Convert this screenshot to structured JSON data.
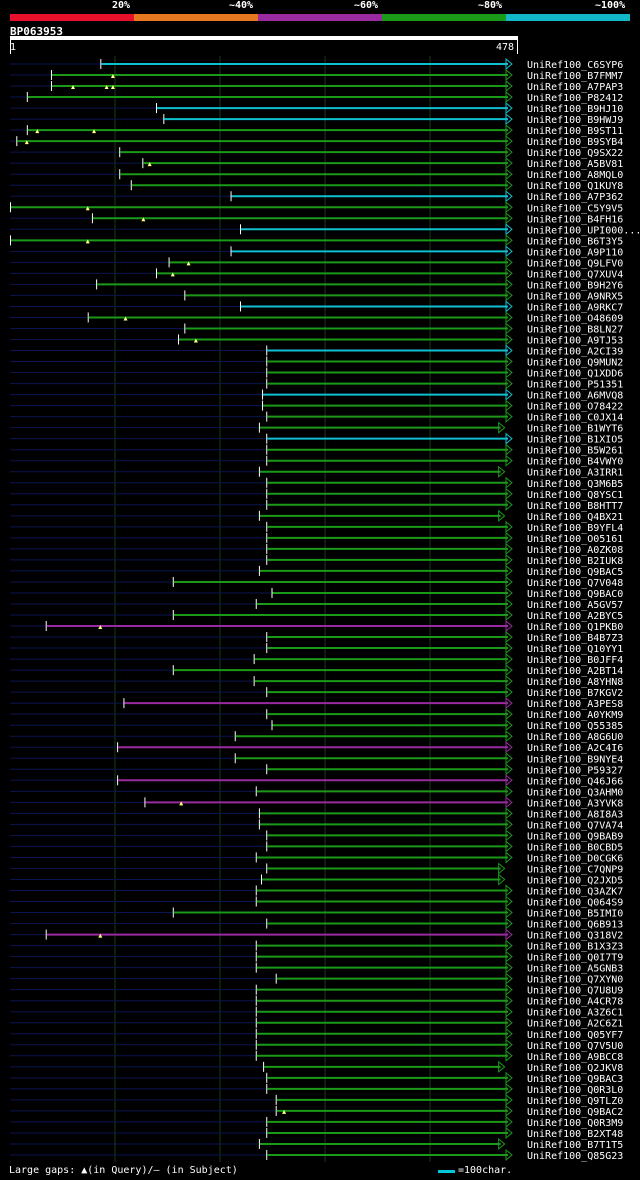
{
  "legend": {
    "percent_labels": [
      "20%",
      "~40%",
      "~60%",
      "~80%",
      "~100%"
    ],
    "colors": [
      "#e8102a",
      "#e87820",
      "#9a2aa0",
      "#1a9a18",
      "#10b8c8"
    ]
  },
  "query": {
    "id": "BP063953",
    "start": "1",
    "end": "478"
  },
  "footer": {
    "large_gaps": "Large gaps: ▲(in Query)/— (in Subject)",
    "scale": "=100char."
  },
  "chart_data": {
    "type": "alignment",
    "query_length": 478,
    "gridlines": [
      100,
      200,
      300,
      400
    ],
    "hits": [
      {
        "name": "UniRef100_C6SYP6",
        "start": 86,
        "end": 478,
        "color": "cyan"
      },
      {
        "name": "UniRef100_B7FMM7",
        "start": 39,
        "end": 478,
        "color": "green",
        "gaps": [
          98
        ]
      },
      {
        "name": "UniRef100_A7PAP3",
        "start": 39,
        "end": 478,
        "color": "green",
        "gaps": [
          60,
          92,
          98
        ]
      },
      {
        "name": "UniRef100_P82412",
        "start": 16,
        "end": 478,
        "color": "green"
      },
      {
        "name": "UniRef100_B9HJ10",
        "start": 139,
        "end": 478,
        "color": "cyan"
      },
      {
        "name": "UniRef100_B9HWJ9",
        "start": 146,
        "end": 478,
        "color": "cyan"
      },
      {
        "name": "UniRef100_B9ST11",
        "start": 16,
        "end": 478,
        "color": "green",
        "gaps": [
          26,
          80
        ]
      },
      {
        "name": "UniRef100_B9SYB4",
        "start": 6,
        "end": 478,
        "color": "green",
        "gaps": [
          16
        ]
      },
      {
        "name": "UniRef100_Q9SX22",
        "start": 104,
        "end": 478,
        "color": "green"
      },
      {
        "name": "UniRef100_A5BV81",
        "start": 126,
        "end": 478,
        "color": "green",
        "gaps": [
          133
        ]
      },
      {
        "name": "UniRef100_A8MQL0",
        "start": 104,
        "end": 478,
        "color": "green"
      },
      {
        "name": "UniRef100_Q1KUY8",
        "start": 115,
        "end": 478,
        "color": "green"
      },
      {
        "name": "UniRef100_A7P362",
        "start": 210,
        "end": 478,
        "color": "cyan"
      },
      {
        "name": "UniRef100_C5Y9V5",
        "start": 0,
        "end": 478,
        "color": "green",
        "gaps": [
          74
        ]
      },
      {
        "name": "UniRef100_B4FH16",
        "start": 78,
        "end": 478,
        "color": "green",
        "gaps": [
          127
        ]
      },
      {
        "name": "UniRef100_UPI000...",
        "start": 219,
        "end": 478,
        "color": "cyan"
      },
      {
        "name": "UniRef100_B6T3Y5",
        "start": 0,
        "end": 478,
        "color": "green",
        "gaps": [
          74
        ]
      },
      {
        "name": "UniRef100_A9P110",
        "start": 210,
        "end": 478,
        "color": "cyan"
      },
      {
        "name": "UniRef100_Q9LFV0",
        "start": 151,
        "end": 478,
        "color": "green",
        "gaps": [
          170
        ]
      },
      {
        "name": "UniRef100_Q7XUV4",
        "start": 139,
        "end": 478,
        "color": "green",
        "gaps": [
          155
        ]
      },
      {
        "name": "UniRef100_B9H2Y6",
        "start": 82,
        "end": 478,
        "color": "green"
      },
      {
        "name": "UniRef100_A9NRX5",
        "start": 166,
        "end": 478,
        "color": "green"
      },
      {
        "name": "UniRef100_A9RKC7",
        "start": 219,
        "end": 478,
        "color": "cyan"
      },
      {
        "name": "UniRef100_O48609",
        "start": 74,
        "end": 478,
        "color": "green",
        "gaps": [
          110
        ]
      },
      {
        "name": "UniRef100_B8LN27",
        "start": 166,
        "end": 478,
        "color": "green"
      },
      {
        "name": "UniRef100_A9TJ53",
        "start": 160,
        "end": 478,
        "color": "green",
        "gaps": [
          177
        ]
      },
      {
        "name": "UniRef100_A2CI39",
        "start": 244,
        "end": 478,
        "color": "cyan"
      },
      {
        "name": "UniRef100_Q9MUN2",
        "start": 244,
        "end": 478,
        "color": "green"
      },
      {
        "name": "UniRef100_Q1XDD6",
        "start": 244,
        "end": 478,
        "color": "green"
      },
      {
        "name": "UniRef100_P51351",
        "start": 244,
        "end": 478,
        "color": "green"
      },
      {
        "name": "UniRef100_A6MVQ8",
        "start": 240,
        "end": 478,
        "color": "cyan"
      },
      {
        "name": "UniRef100_O78422",
        "start": 240,
        "end": 478,
        "color": "green"
      },
      {
        "name": "UniRef100_C0JX14",
        "start": 244,
        "end": 478,
        "color": "green"
      },
      {
        "name": "UniRef100_B1WYT6",
        "start": 237,
        "end": 471,
        "color": "green"
      },
      {
        "name": "UniRef100_B1XIO5",
        "start": 244,
        "end": 478,
        "color": "cyan"
      },
      {
        "name": "UniRef100_B5W261",
        "start": 244,
        "end": 478,
        "color": "green"
      },
      {
        "name": "UniRef100_B4VWY0",
        "start": 244,
        "end": 478,
        "color": "green"
      },
      {
        "name": "UniRef100_A3IRR1",
        "start": 237,
        "end": 471,
        "color": "green"
      },
      {
        "name": "UniRef100_Q3M6B5",
        "start": 244,
        "end": 478,
        "color": "green"
      },
      {
        "name": "UniRef100_Q8YSC1",
        "start": 244,
        "end": 478,
        "color": "green"
      },
      {
        "name": "UniRef100_B8HTT7",
        "start": 244,
        "end": 478,
        "color": "green"
      },
      {
        "name": "UniRef100_Q4BX21",
        "start": 237,
        "end": 471,
        "color": "green"
      },
      {
        "name": "UniRef100_B9YFL4",
        "start": 244,
        "end": 478,
        "color": "green"
      },
      {
        "name": "UniRef100_O05161",
        "start": 244,
        "end": 478,
        "color": "green"
      },
      {
        "name": "UniRef100_A0ZK08",
        "start": 244,
        "end": 478,
        "color": "green"
      },
      {
        "name": "UniRef100_B2IUK8",
        "start": 244,
        "end": 478,
        "color": "green"
      },
      {
        "name": "UniRef100_Q9BAC5",
        "start": 237,
        "end": 478,
        "color": "green"
      },
      {
        "name": "UniRef100_Q7V048",
        "start": 155,
        "end": 478,
        "color": "green"
      },
      {
        "name": "UniRef100_Q9BAC0",
        "start": 249,
        "end": 478,
        "color": "green"
      },
      {
        "name": "UniRef100_A5GV57",
        "start": 234,
        "end": 478,
        "color": "green"
      },
      {
        "name": "UniRef100_A2BYC5",
        "start": 155,
        "end": 478,
        "color": "green"
      },
      {
        "name": "UniRef100_Q1PKB0",
        "start": 34,
        "end": 478,
        "color": "purple",
        "gaps": [
          86
        ]
      },
      {
        "name": "UniRef100_B4B7Z3",
        "start": 244,
        "end": 478,
        "color": "green"
      },
      {
        "name": "UniRef100_Q10YY1",
        "start": 244,
        "end": 478,
        "color": "green"
      },
      {
        "name": "UniRef100_B0JFF4",
        "start": 232,
        "end": 478,
        "color": "green"
      },
      {
        "name": "UniRef100_A2BT14",
        "start": 155,
        "end": 478,
        "color": "green"
      },
      {
        "name": "UniRef100_A8YHN8",
        "start": 232,
        "end": 478,
        "color": "green"
      },
      {
        "name": "UniRef100_B7KGV2",
        "start": 244,
        "end": 478,
        "color": "green"
      },
      {
        "name": "UniRef100_A3PES8",
        "start": 108,
        "end": 478,
        "color": "purple"
      },
      {
        "name": "UniRef100_A0YKM9",
        "start": 244,
        "end": 478,
        "color": "green"
      },
      {
        "name": "UniRef100_Q55385",
        "start": 249,
        "end": 478,
        "color": "green"
      },
      {
        "name": "UniRef100_A8G6U0",
        "start": 214,
        "end": 478,
        "color": "green"
      },
      {
        "name": "UniRef100_A2C4I6",
        "start": 102,
        "end": 478,
        "color": "purple"
      },
      {
        "name": "UniRef100_B9NYE4",
        "start": 214,
        "end": 478,
        "color": "green"
      },
      {
        "name": "UniRef100_P59327",
        "start": 244,
        "end": 478,
        "color": "green"
      },
      {
        "name": "UniRef100_Q46J66",
        "start": 102,
        "end": 478,
        "color": "purple"
      },
      {
        "name": "UniRef100_Q3AHM0",
        "start": 234,
        "end": 478,
        "color": "green"
      },
      {
        "name": "UniRef100_A3YVK8",
        "start": 128,
        "end": 478,
        "color": "purple",
        "gaps": [
          163
        ]
      },
      {
        "name": "UniRef100_A8I8A3",
        "start": 237,
        "end": 478,
        "color": "green"
      },
      {
        "name": "UniRef100_Q7VA74",
        "start": 237,
        "end": 478,
        "color": "green"
      },
      {
        "name": "UniRef100_Q9BAB9",
        "start": 244,
        "end": 478,
        "color": "green"
      },
      {
        "name": "UniRef100_B0CBD5",
        "start": 244,
        "end": 478,
        "color": "green"
      },
      {
        "name": "UniRef100_D0CGK6",
        "start": 234,
        "end": 478,
        "color": "green"
      },
      {
        "name": "UniRef100_C7QNP9",
        "start": 244,
        "end": 471,
        "color": "green"
      },
      {
        "name": "UniRef100_Q2JXD5",
        "start": 239,
        "end": 471,
        "color": "green"
      },
      {
        "name": "UniRef100_Q3AZK7",
        "start": 234,
        "end": 478,
        "color": "green"
      },
      {
        "name": "UniRef100_Q064S9",
        "start": 234,
        "end": 478,
        "color": "green"
      },
      {
        "name": "UniRef100_B5IMI0",
        "start": 155,
        "end": 478,
        "color": "green"
      },
      {
        "name": "UniRef100_Q6B913",
        "start": 244,
        "end": 478,
        "color": "green"
      },
      {
        "name": "UniRef100_Q318V2",
        "start": 34,
        "end": 478,
        "color": "purple",
        "gaps": [
          86
        ]
      },
      {
        "name": "UniRef100_B1X3Z3",
        "start": 234,
        "end": 478,
        "color": "green"
      },
      {
        "name": "UniRef100_Q0I7T9",
        "start": 234,
        "end": 478,
        "color": "green"
      },
      {
        "name": "UniRef100_A5GNB3",
        "start": 234,
        "end": 478,
        "color": "green"
      },
      {
        "name": "UniRef100_Q7XYN0",
        "start": 253,
        "end": 478,
        "color": "green"
      },
      {
        "name": "UniRef100_Q7U8U9",
        "start": 234,
        "end": 478,
        "color": "green"
      },
      {
        "name": "UniRef100_A4CR78",
        "start": 234,
        "end": 478,
        "color": "green"
      },
      {
        "name": "UniRef100_A3Z6C1",
        "start": 234,
        "end": 478,
        "color": "green"
      },
      {
        "name": "UniRef100_A2C6Z1",
        "start": 234,
        "end": 478,
        "color": "green"
      },
      {
        "name": "UniRef100_Q05YF7",
        "start": 234,
        "end": 478,
        "color": "green"
      },
      {
        "name": "UniRef100_Q7V5U0",
        "start": 234,
        "end": 478,
        "color": "green"
      },
      {
        "name": "UniRef100_A9BCC8",
        "start": 234,
        "end": 478,
        "color": "green"
      },
      {
        "name": "UniRef100_Q2JKV8",
        "start": 241,
        "end": 471,
        "color": "green"
      },
      {
        "name": "UniRef100_Q9BAC3",
        "start": 244,
        "end": 478,
        "color": "green"
      },
      {
        "name": "UniRef100_Q0R3L0",
        "start": 244,
        "end": 478,
        "color": "green"
      },
      {
        "name": "UniRef100_Q9TLZ0",
        "start": 253,
        "end": 478,
        "color": "green"
      },
      {
        "name": "UniRef100_Q9BAC2",
        "start": 253,
        "end": 478,
        "color": "green",
        "gaps": [
          261
        ]
      },
      {
        "name": "UniRef100_Q0R3M9",
        "start": 244,
        "end": 478,
        "color": "green"
      },
      {
        "name": "UniRef100_B2XT48",
        "start": 244,
        "end": 478,
        "color": "green"
      },
      {
        "name": "UniRef100_B7T1T5",
        "start": 237,
        "end": 471,
        "color": "green"
      },
      {
        "name": "UniRef100_Q85G23",
        "start": 244,
        "end": 478,
        "color": "green"
      }
    ]
  }
}
